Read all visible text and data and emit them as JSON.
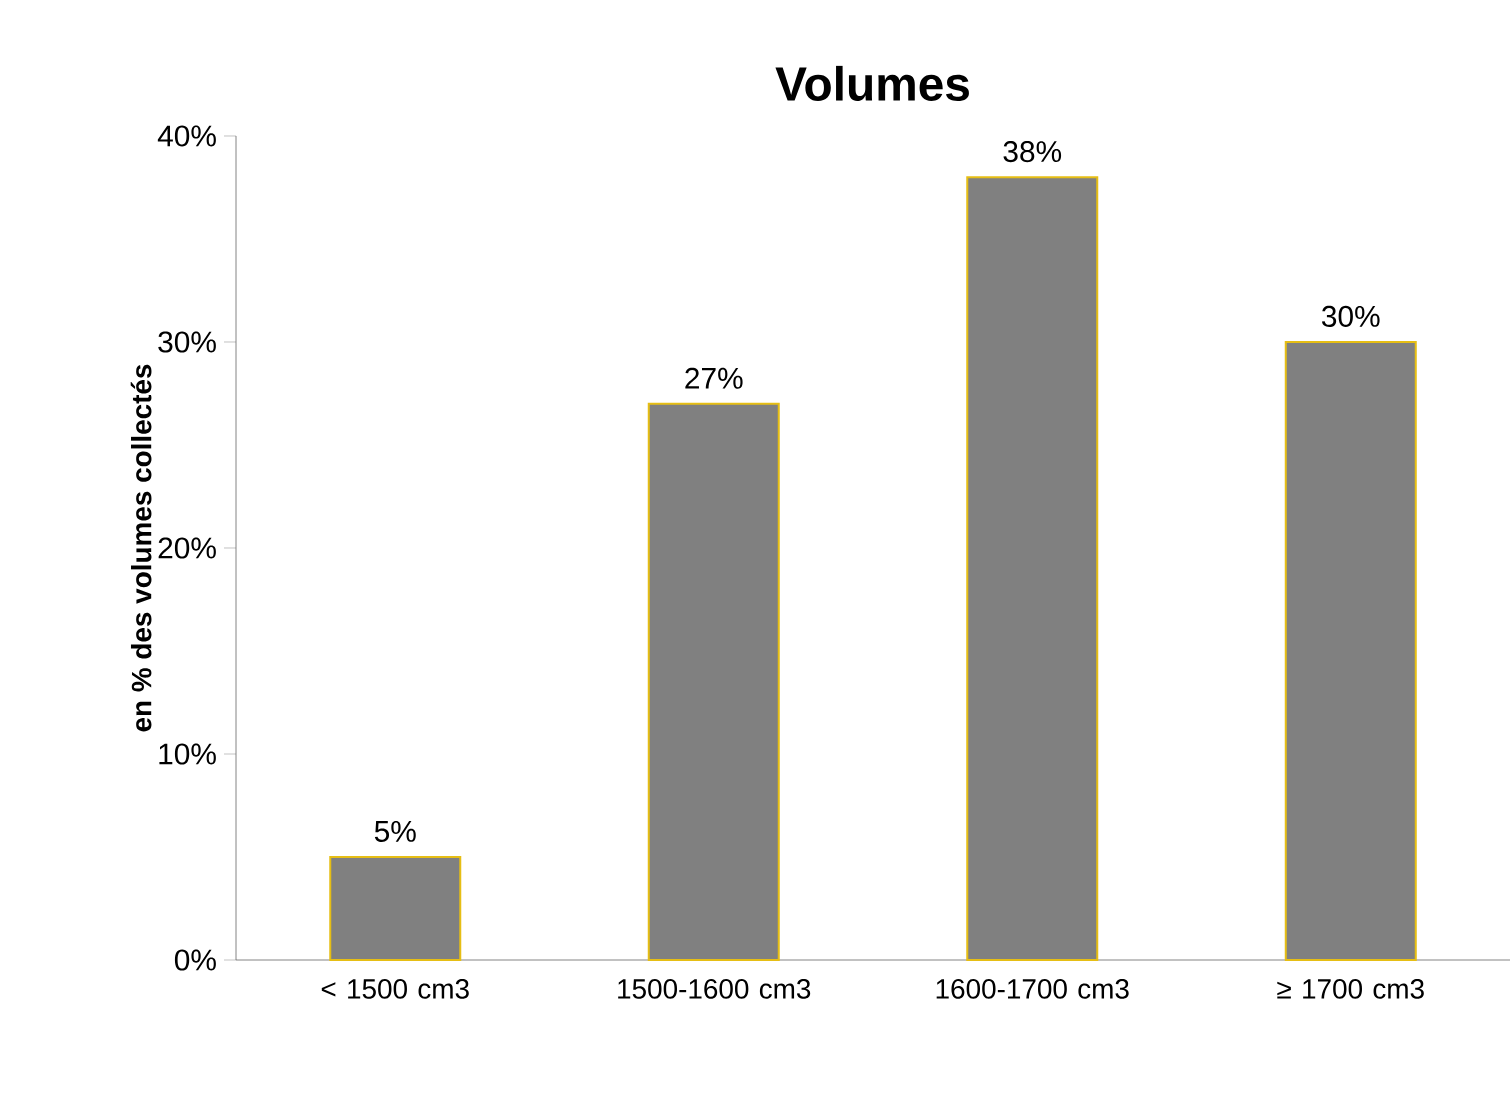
{
  "chart_data": {
    "type": "bar",
    "title": "Volumes",
    "ylabel": "en % des volumes collectés",
    "categories": [
      "< 1500 cm3",
      "1500-1600 cm3",
      "1600-1700 cm3",
      "≥ 1700 cm3"
    ],
    "values": [
      5,
      27,
      38,
      30
    ],
    "value_labels": [
      "5%",
      "27%",
      "38%",
      "30%"
    ],
    "color": "#808080",
    "ylim": [
      0,
      40
    ],
    "yticks": [
      {
        "value": 0,
        "label": "0%"
      },
      {
        "value": 10,
        "label": "10%"
      },
      {
        "value": 20,
        "label": "20%"
      },
      {
        "value": 30,
        "label": "30%"
      },
      {
        "value": 40,
        "label": "40%"
      }
    ]
  }
}
